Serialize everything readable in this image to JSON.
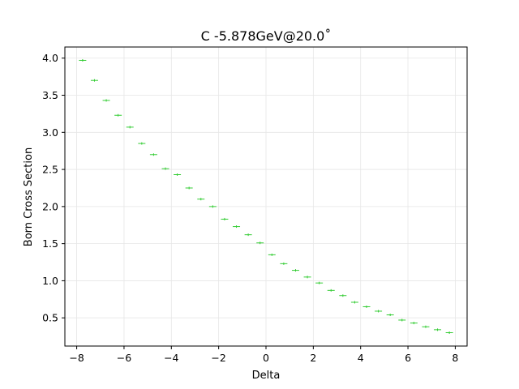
{
  "chart_data": {
    "type": "scatter",
    "title": "C -5.878GeV@20.0˚",
    "xlabel": "Delta",
    "ylabel": "Born Cross Section",
    "xlim": [
      -8.5,
      8.5
    ],
    "ylim": [
      0.12,
      4.15
    ],
    "x_ticks": [
      -8,
      -6,
      -4,
      -2,
      0,
      2,
      4,
      6,
      8
    ],
    "x_tick_labels": [
      "−8",
      "−6",
      "−4",
      "−2",
      "0",
      "2",
      "4",
      "6",
      "8"
    ],
    "y_ticks": [
      0.5,
      1.0,
      1.5,
      2.0,
      2.5,
      3.0,
      3.5,
      4.0
    ],
    "y_tick_labels": [
      "0.5",
      "1.0",
      "1.5",
      "2.0",
      "2.5",
      "3.0",
      "3.5",
      "4.0"
    ],
    "grid": true,
    "marker_color": "#33cc33",
    "series": [
      {
        "x": [
          -7.75,
          -7.25,
          -6.75,
          -6.25,
          -5.75,
          -5.25,
          -4.75,
          -4.25,
          -3.75,
          -3.25,
          -2.75,
          -2.25,
          -1.75,
          -1.25,
          -0.75,
          -0.25,
          0.25,
          0.75,
          1.25,
          1.75,
          2.25,
          2.75,
          3.25,
          3.75,
          4.25,
          4.75,
          5.25,
          5.75,
          6.25,
          6.75,
          7.25,
          7.75
        ],
        "y": [
          3.97,
          3.7,
          3.43,
          3.23,
          3.07,
          2.85,
          2.7,
          2.51,
          2.43,
          2.25,
          2.1,
          2.0,
          1.83,
          1.73,
          1.62,
          1.51,
          1.35,
          1.23,
          1.14,
          1.05,
          0.97,
          0.87,
          0.8,
          0.71,
          0.65,
          0.59,
          0.54,
          0.47,
          0.43,
          0.38,
          0.34,
          0.3
        ]
      }
    ]
  }
}
